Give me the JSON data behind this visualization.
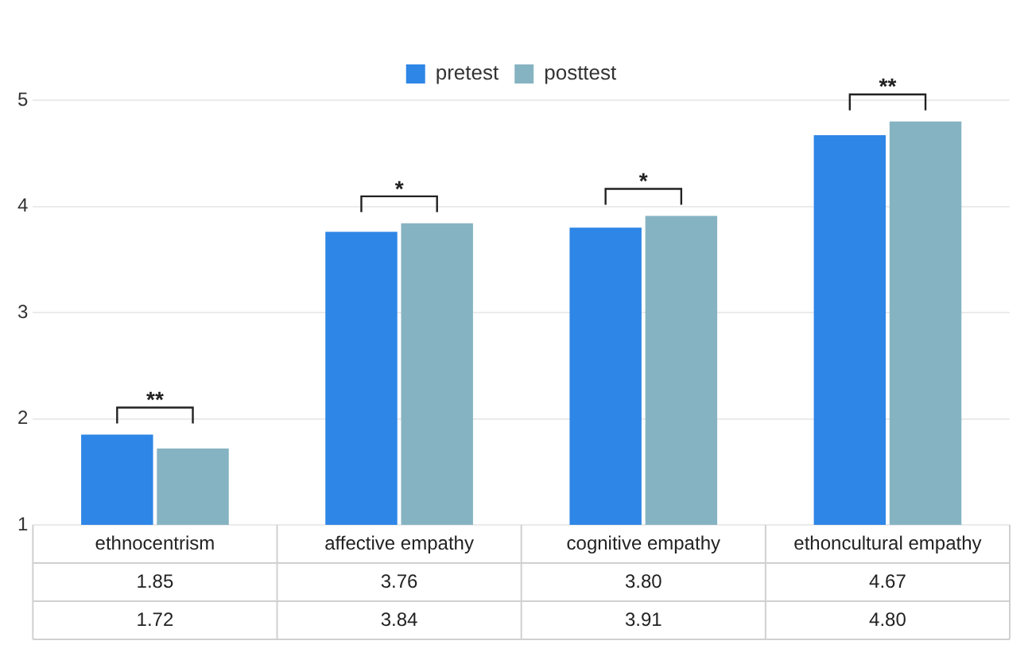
{
  "chart_data": {
    "type": "bar",
    "categories": [
      "ethnocentrism",
      "affective empathy",
      "cognitive empathy",
      "ethoncultural empathy"
    ],
    "series": [
      {
        "name": "pretest",
        "color": "#2e86e6",
        "values": [
          1.85,
          3.76,
          3.8,
          4.67
        ],
        "value_labels": [
          "1.85",
          "3.76",
          "3.80",
          "4.67"
        ]
      },
      {
        "name": "posttest",
        "color": "#86b3c2",
        "values": [
          1.72,
          3.84,
          3.91,
          4.8
        ],
        "value_labels": [
          "1.72",
          "3.84",
          "3.91",
          "4.80"
        ]
      }
    ],
    "ylim": [
      1,
      5
    ],
    "yticks": [
      1,
      2,
      3,
      4,
      5
    ],
    "grid": "y",
    "legend": "top",
    "annotations": [
      "**",
      "*",
      "*",
      "**"
    ]
  }
}
